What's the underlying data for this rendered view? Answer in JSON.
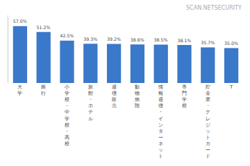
{
  "chart_data": {
    "type": "bar",
    "categories": [
      "大学",
      "銀行",
      "小学校・中学校・高校",
      "旅館・ホテル",
      "通信販売",
      "動物病院",
      "情報通信・インターネット",
      "専門学校",
      "貯金業・クレジットカード",
      "T"
    ],
    "values": [
      57.0,
      51.2,
      42.5,
      39.3,
      39.2,
      38.6,
      38.5,
      38.1,
      35.7,
      35.0
    ],
    "value_labels": [
      "57.0%",
      "51.2%",
      "42.5%",
      "39.3%",
      "39.2%",
      "38.6%",
      "38.5%",
      "38.1%",
      "35.7%",
      "35.0%"
    ],
    "data_labels": true,
    "color": "#3a78c9",
    "ylim": [
      0,
      68
    ],
    "yticks": [],
    "tick_labels": "x",
    "grid": false,
    "annotations": [
      "SCAN.NETSECURITY"
    ]
  }
}
